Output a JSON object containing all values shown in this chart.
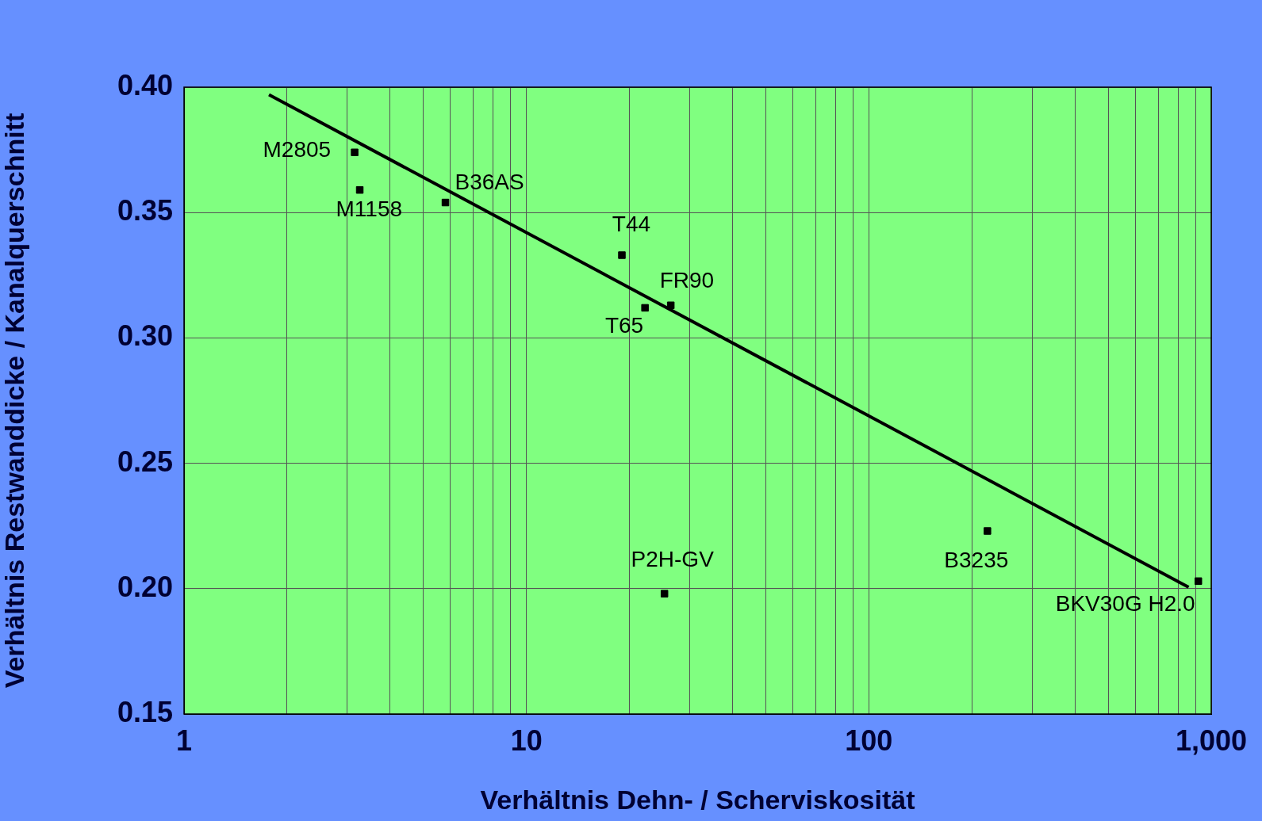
{
  "chart_data": {
    "type": "scatter",
    "xlabel": "Verhältnis Dehn- / Scherviskosität",
    "ylabel": "Verhältnis Restwanddicke / Kanalquerschnitt",
    "log": "x",
    "grid": true,
    "legend": false,
    "marker": "square",
    "xlim": [
      1,
      1000
    ],
    "ylim": [
      0.15,
      0.4
    ],
    "xticks": [
      1,
      {
        "value": 2,
        "label": null
      },
      {
        "value": 3,
        "label": null
      },
      {
        "value": 4,
        "label": null
      },
      {
        "value": 5,
        "label": null
      },
      {
        "value": 6,
        "label": null
      },
      {
        "value": 7,
        "label": null
      },
      {
        "value": 8,
        "label": null
      },
      {
        "value": 9,
        "label": null
      },
      10,
      {
        "value": 20,
        "label": null
      },
      {
        "value": 30,
        "label": null
      },
      {
        "value": 40,
        "label": null
      },
      {
        "value": 50,
        "label": null
      },
      {
        "value": 60,
        "label": null
      },
      {
        "value": 70,
        "label": null
      },
      {
        "value": 80,
        "label": null
      },
      {
        "value": 90,
        "label": null
      },
      100,
      {
        "value": 200,
        "label": null
      },
      {
        "value": 300,
        "label": null
      },
      {
        "value": 400,
        "label": null
      },
      {
        "value": 500,
        "label": null
      },
      {
        "value": 600,
        "label": null
      },
      {
        "value": 700,
        "label": null
      },
      {
        "value": 800,
        "label": null
      },
      {
        "value": 900,
        "label": null
      },
      {
        "value": 1000,
        "label": "1,000"
      }
    ],
    "yticks": [
      {
        "value": 0.15,
        "label": "0.15"
      },
      {
        "value": 0.2,
        "label": "0.20"
      },
      {
        "value": 0.25,
        "label": "0.25"
      },
      {
        "value": 0.3,
        "label": "0.30"
      },
      {
        "value": 0.35,
        "label": "0.35"
      },
      {
        "value": 0.4,
        "label": "0.40"
      }
    ],
    "series": [
      {
        "name": "M2805",
        "color": "#000000",
        "x": [
          3.15
        ],
        "values": [
          0.374
        ]
      },
      {
        "name": "M1158",
        "color": "#000000",
        "x": [
          3.26
        ],
        "values": [
          0.359
        ]
      },
      {
        "name": "B36AS",
        "color": "#000000",
        "x": [
          5.8
        ],
        "values": [
          0.354
        ]
      },
      {
        "name": "T44",
        "color": "#000000",
        "x": [
          19
        ],
        "values": [
          0.333
        ]
      },
      {
        "name": "T65",
        "color": "#000000",
        "x": [
          22.2
        ],
        "values": [
          0.312
        ]
      },
      {
        "name": "FR90",
        "color": "#000000",
        "x": [
          26.4
        ],
        "values": [
          0.313
        ]
      },
      {
        "name": "P2H-GV",
        "color": "#000000",
        "x": [
          25.3
        ],
        "values": [
          0.198
        ]
      },
      {
        "name": "B3235",
        "color": "#000000",
        "x": [
          222
        ],
        "values": [
          0.223
        ]
      },
      {
        "name": "BKV30G H2.0",
        "color": "#000000",
        "x": [
          917
        ],
        "values": [
          0.203
        ]
      },
      {
        "type": "line",
        "marker": "none",
        "color": "#000000",
        "x": [
          1.77,
          859
        ],
        "values": [
          0.397,
          0.2006
        ]
      }
    ]
  }
}
